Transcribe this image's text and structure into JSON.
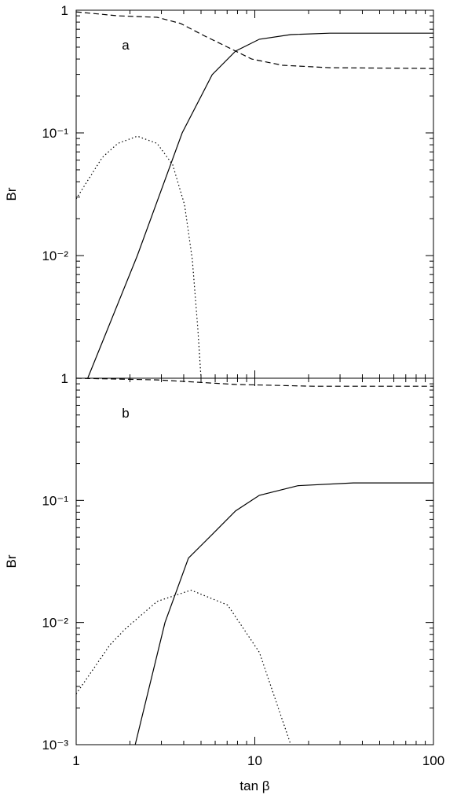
{
  "chart_data": [
    {
      "type": "line",
      "log_x": true,
      "log_y": true,
      "annotation": "a",
      "ylabel": "Br",
      "xlim": [
        1,
        100
      ],
      "xticks": [
        1,
        10,
        100
      ],
      "show_xtick_labels": false,
      "ylim": [
        0.001,
        1
      ],
      "yticks": [
        1,
        {
          "value": 0.1,
          "label": "10⁻¹"
        },
        {
          "value": 0.01,
          "label": "10⁻²"
        }
      ],
      "series": [
        {
          "style": "solid",
          "color": "#000",
          "x": [
            1.16,
            2.2,
            3.92,
            5.77,
            7.8,
            10.6,
            15.9,
            26.3,
            100
          ],
          "values": [
            0.001,
            0.01,
            0.1,
            0.298,
            0.464,
            0.58,
            0.633,
            0.65,
            0.65
          ]
        },
        {
          "style": "dashed",
          "color": "#000",
          "x": [
            1,
            1.71,
            2.84,
            3.84,
            5.2,
            7.05,
            9.6,
            14.3,
            26.3,
            100
          ],
          "values": [
            0.97,
            0.9,
            0.875,
            0.78,
            0.62,
            0.5,
            0.4,
            0.356,
            0.34,
            0.335
          ]
        },
        {
          "style": "dotted",
          "color": "#000",
          "x": [
            1,
            1.4,
            1.71,
            2.2,
            2.84,
            3.47,
            4.04,
            4.47,
            4.8,
            5.0
          ],
          "values": [
            0.029,
            0.063,
            0.082,
            0.094,
            0.082,
            0.055,
            0.026,
            0.0093,
            0.0025,
            0.001
          ]
        }
      ]
    },
    {
      "type": "line",
      "log_x": true,
      "log_y": true,
      "annotation": "b",
      "ylabel": "Br",
      "xlabel": "tan β",
      "xlim": [
        1,
        100
      ],
      "xticks": [
        1,
        10,
        100
      ],
      "show_xtick_labels": true,
      "ylim": [
        0.001,
        1
      ],
      "yticks": [
        1,
        {
          "value": 0.1,
          "label": "10⁻¹"
        },
        {
          "value": 0.01,
          "label": "10⁻²"
        },
        {
          "value": 0.001,
          "label": "10⁻³"
        }
      ],
      "series": [
        {
          "style": "solid",
          "color": "#000",
          "x": [
            2.14,
            3.14,
            4.25,
            5.77,
            7.8,
            10.6,
            17.5,
            35.6,
            100
          ],
          "values": [
            0.001,
            0.01,
            0.0337,
            0.0526,
            0.082,
            0.11,
            0.132,
            0.139,
            0.139
          ]
        },
        {
          "style": "dashed",
          "color": "#000",
          "x": [
            1,
            2.84,
            7.8,
            21.4,
            100
          ],
          "values": [
            1.0,
            0.97,
            0.89,
            0.86,
            0.86
          ]
        },
        {
          "style": "dotted",
          "color": "#000",
          "x": [
            1,
            1.55,
            1.89,
            2.84,
            4.39,
            7.05,
            10.6,
            15.9
          ],
          "values": [
            0.0026,
            0.0066,
            0.0089,
            0.0149,
            0.0184,
            0.0139,
            0.0057,
            0.001
          ]
        }
      ]
    }
  ]
}
